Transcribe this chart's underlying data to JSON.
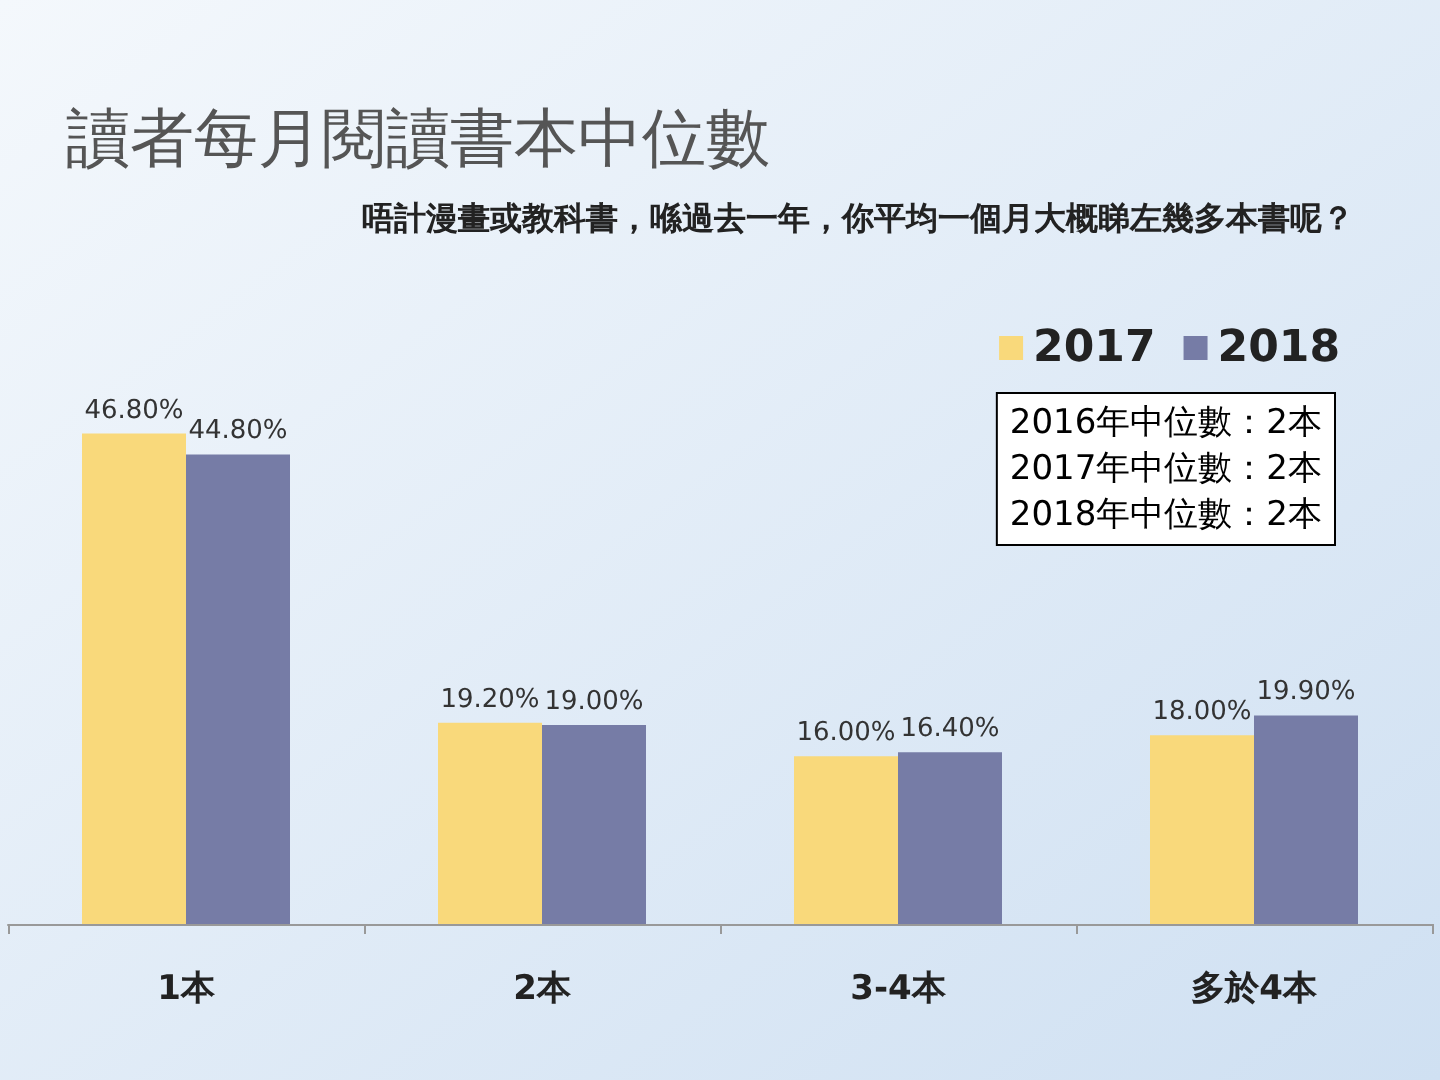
{
  "chart_data": {
    "type": "bar",
    "title": "讀者每月閱讀書本中位數",
    "subtitle": "唔計漫畫或教科書，喺過去一年，你平均一個月大概睇左幾多本書呢？",
    "categories": [
      "1本",
      "2本",
      "3-4本",
      "多於4本"
    ],
    "series": [
      {
        "name": "2017",
        "color": "#f9d97b",
        "values": [
          46.8,
          19.2,
          16.0,
          18.0
        ],
        "value_labels": [
          "46.80%",
          "19.20%",
          "16.00%",
          "18.00%"
        ]
      },
      {
        "name": "2018",
        "color": "#767ca6",
        "values": [
          44.8,
          19.0,
          16.4,
          19.9
        ],
        "value_labels": [
          "44.80%",
          "19.00%",
          "16.40%",
          "19.90%"
        ]
      }
    ],
    "annotations": [
      "2016年中位數：2本",
      "2017年中位數：2本",
      "2018年中位數：2本"
    ],
    "legend": "top right",
    "grid": false
  }
}
